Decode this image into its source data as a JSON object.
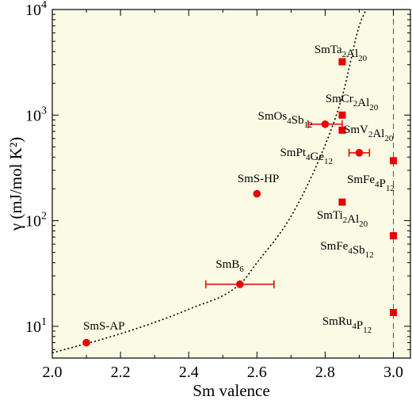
{
  "chart_data": {
    "type": "scatter",
    "xlabel": "Sm valence",
    "ylabel": "γ (mJ/mol K²)",
    "xlim": [
      2.0,
      3.05
    ],
    "ylim": [
      5,
      10000
    ],
    "yscale": "log",
    "grid": false,
    "background_color": "#fbfae4",
    "marker_color": "#e60000",
    "x_ticks": [
      "2.0",
      "2.2",
      "2.4",
      "2.6",
      "2.8",
      "3.0"
    ],
    "y_ticks": [
      {
        "base": "10",
        "exp": "1"
      },
      {
        "base": "10",
        "exp": "2"
      },
      {
        "base": "10",
        "exp": "3"
      },
      {
        "base": "10",
        "exp": "4"
      }
    ],
    "reference_line": {
      "x": 3.0,
      "style": "dashed"
    },
    "trend_curve": {
      "style": "dotted",
      "points": [
        [
          2.0,
          5.6
        ],
        [
          2.2,
          8.5
        ],
        [
          2.4,
          14.5
        ],
        [
          2.55,
          25
        ],
        [
          2.6,
          40
        ],
        [
          2.7,
          110
        ],
        [
          2.8,
          520
        ],
        [
          2.85,
          1500
        ],
        [
          2.9,
          7000
        ],
        [
          2.92,
          10000
        ]
      ]
    },
    "points": [
      {
        "label_parts": [
          [
            "SmS-AP",
            ""
          ]
        ],
        "x": 2.1,
        "y": 7,
        "marker": "circle"
      },
      {
        "label_parts": [
          [
            "SmB",
            "6"
          ]
        ],
        "x": 2.55,
        "y": 25,
        "marker": "circle",
        "xerr": 0.1
      },
      {
        "label_parts": [
          [
            "SmS-HP",
            ""
          ]
        ],
        "x": 2.6,
        "y": 180,
        "marker": "circle"
      },
      {
        "label_parts": [
          [
            "SmOs",
            "4"
          ],
          [
            "Sb",
            "12"
          ]
        ],
        "x": 2.8,
        "y": 820,
        "marker": "circle",
        "xerr": 0.05
      },
      {
        "label_parts": [
          [
            "SmPt",
            "4"
          ],
          [
            "Ge",
            "12"
          ]
        ],
        "x": 2.9,
        "y": 440,
        "marker": "circle",
        "xerr": 0.03
      },
      {
        "label_parts": [
          [
            "SmTa",
            "2"
          ],
          [
            "Al",
            "20"
          ]
        ],
        "x": 2.85,
        "y": 3200,
        "marker": "square"
      },
      {
        "label_parts": [
          [
            "SmCr",
            "2"
          ],
          [
            "Al",
            "20"
          ]
        ],
        "x": 2.85,
        "y": 1000,
        "marker": "square"
      },
      {
        "label_parts": [
          [
            "SmV",
            "2"
          ],
          [
            "Al",
            "20"
          ]
        ],
        "x": 2.85,
        "y": 720,
        "marker": "square"
      },
      {
        "label_parts": [
          [
            "SmTi",
            "2"
          ],
          [
            "Al",
            "20"
          ]
        ],
        "x": 2.85,
        "y": 150,
        "marker": "square"
      },
      {
        "label_parts": [
          [
            "SmFe",
            "4"
          ],
          [
            "P",
            "12"
          ]
        ],
        "x": 3.0,
        "y": 370,
        "marker": "square"
      },
      {
        "label_parts": [
          [
            "SmFe",
            "4"
          ],
          [
            "Sb",
            "12"
          ]
        ],
        "x": 3.0,
        "y": 72,
        "marker": "square"
      },
      {
        "label_parts": [
          [
            "SmRu",
            "4"
          ],
          [
            "P",
            "12"
          ]
        ],
        "x": 3.0,
        "y": 13.5,
        "marker": "square"
      }
    ]
  }
}
